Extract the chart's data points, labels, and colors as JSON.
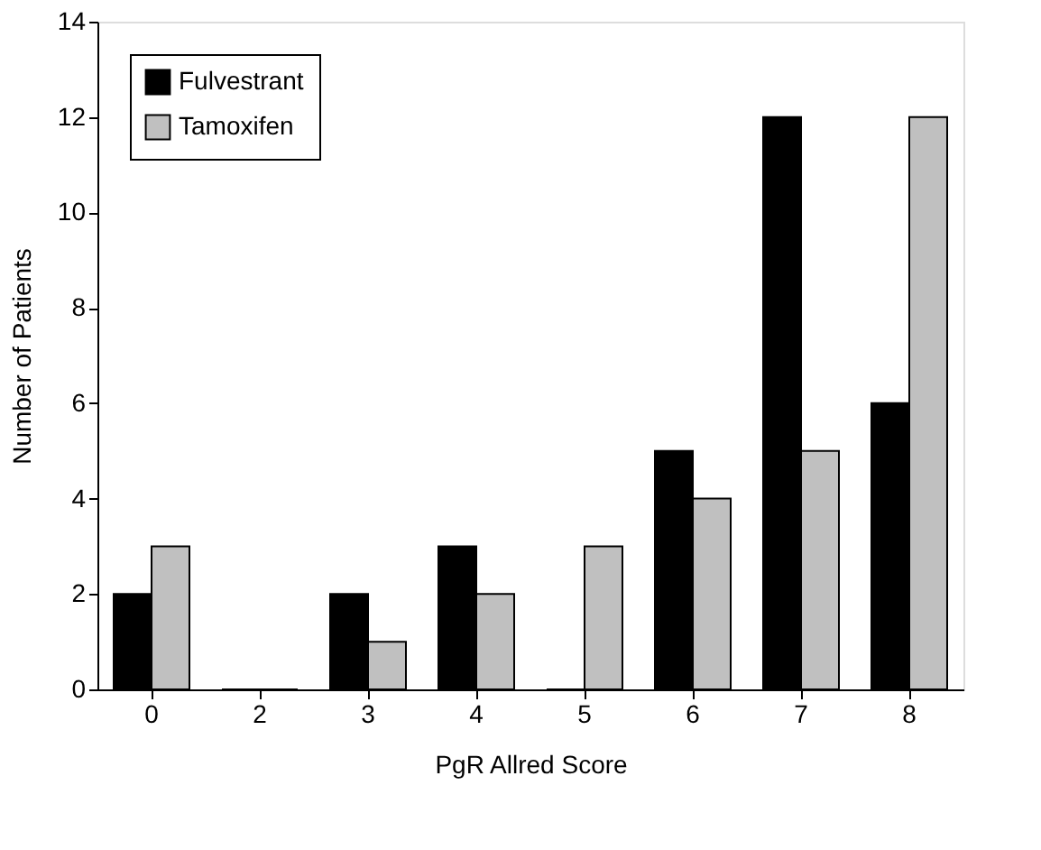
{
  "chart_data": {
    "type": "bar",
    "xlabel": "PgR Allred Score",
    "ylabel": "Number of Patients",
    "categories": [
      "0",
      "2",
      "3",
      "4",
      "5",
      "6",
      "7",
      "8"
    ],
    "series": [
      {
        "name": "Fulvestrant",
        "color": "#000000",
        "values": [
          2,
          0,
          2,
          3,
          0,
          5,
          12,
          6
        ]
      },
      {
        "name": "Tamoxifen",
        "color": "#c0c0c0",
        "values": [
          3,
          0,
          1,
          2,
          3,
          4,
          5,
          12
        ]
      }
    ],
    "ylim": [
      0,
      14
    ],
    "yticks": [
      0,
      2,
      4,
      6,
      8,
      10,
      12,
      14
    ],
    "grid": false,
    "legend": "top left"
  }
}
